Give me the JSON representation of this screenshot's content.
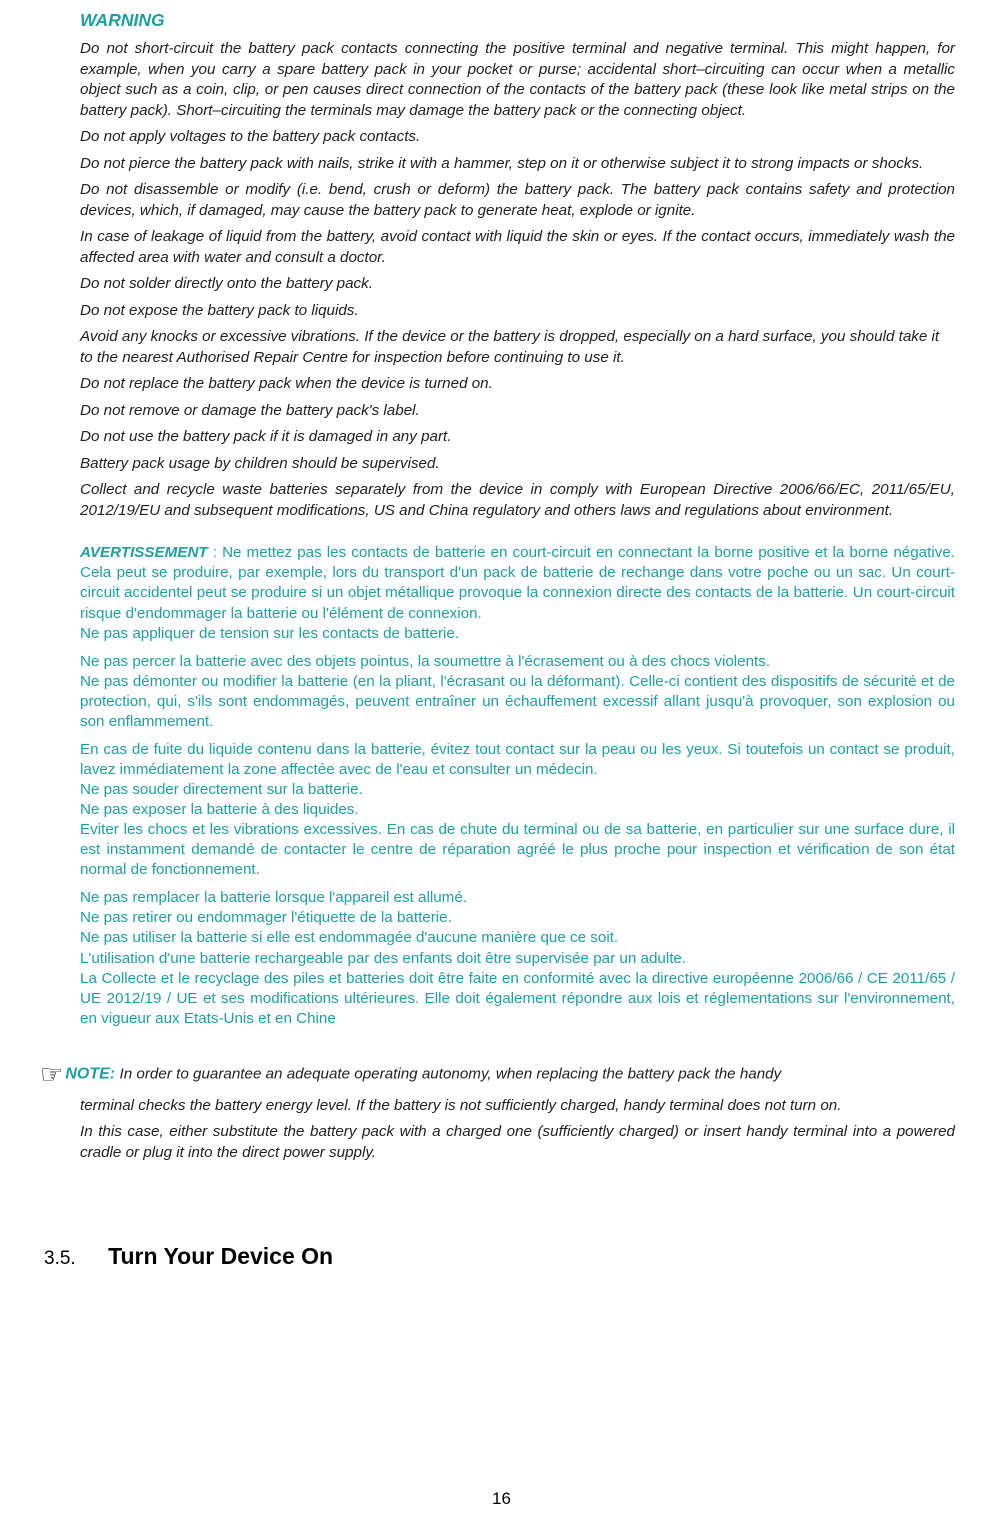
{
  "warning": {
    "title": "WARNING",
    "paras": [
      "Do not short-circuit the battery pack contacts connecting the positive terminal and negative terminal. This might happen, for example, when you carry a spare battery pack in your pocket or purse; accidental short–circuiting can occur when a metallic object such as a coin, clip, or pen causes direct connection of the contacts of the battery pack (these look like metal strips on the battery pack). Short–circuiting the terminals may damage the battery pack or the connecting object.",
      "Do not apply voltages to the battery pack contacts.",
      "Do not pierce the battery pack with nails, strike it with a hammer, step on it or otherwise subject it to strong impacts or shocks.",
      "Do not disassemble or modify (i.e. bend, crush or deform) the battery pack. The battery pack contains safety and protection devices, which, if damaged, may cause the battery pack to generate heat, explode or ignite.",
      "In case of leakage of liquid from the battery, avoid contact with liquid the skin or eyes. If the contact occurs, immediately wash the affected area with water and consult a doctor.",
      "Do not solder directly onto the battery pack.",
      "Do not expose the battery pack to liquids.",
      "Avoid any knocks or excessive vibrations. If the device or the battery is dropped, especially on a hard surface, you should take it to the nearest Authorised Repair Centre for inspection before continuing to use it.",
      "Do not replace the battery pack when the device is turned on.",
      "Do not remove or damage the battery pack's label.",
      "Do not use the battery pack if it is damaged in any part.",
      "Battery pack usage by children should be supervised.",
      "Collect and recycle waste batteries separately from the device in comply with European Directive 2006/66/EC, 2011/65/EU, 2012/19/EU and subsequent modifications, US and China regulatory and others laws and regulations about environment."
    ]
  },
  "avertissement": {
    "title": "AVERTISSEMENT",
    "blocks": [
      [
        ": Ne mettez pas les contacts de batterie en court-circuit en connectant la borne positive et la borne négative. Cela peut se produire, par exemple, lors du transport d'un pack de batterie de rechange dans votre poche ou un sac. Un court-circuit accidentel peut se produire si un objet métallique provoque la connexion directe des contacts de la batterie. Un court-circuit risque d'endommager la batterie ou l'élément de connexion.",
        "Ne pas appliquer de tension sur les contacts de batterie."
      ],
      [
        "Ne pas percer la batterie avec des objets pointus, la soumettre à l'écrasement ou à des chocs violents.",
        "Ne pas démonter ou modifier la batterie (en la pliant, l'écrasant ou la déformant). Celle-ci contient des dispositifs de sécurité et de protection, qui, s'ils sont endommagés, peuvent entraîner un échauffement excessif allant jusqu'à provoquer, son explosion ou son enflammement."
      ],
      [
        "En cas de fuite du liquide contenu dans la batterie, évitez tout contact sur la peau ou les yeux. Si toutefois un contact se produit, lavez immédiatement la zone affectée avec de l'eau et consulter un médecin.",
        "Ne pas souder directement sur la batterie.",
        "Ne pas exposer la batterie à des liquides.",
        "Eviter les chocs et les vibrations excessives. En cas de chute du terminal ou de sa batterie, en particulier sur une surface dure, il est instamment demandé de contacter le centre de réparation agréé le plus proche pour inspection et vérification de son état normal de fonctionnement."
      ],
      [
        "Ne pas remplacer la batterie lorsque l'appareil est allumé.",
        "Ne pas retirer ou endommager l'étiquette de la batterie.",
        "Ne pas utiliser la batterie si elle est endommagée d'aucune manière que ce soit.",
        "L'utilisation d'une batterie rechargeable par des enfants doit être supervisée par un adulte.",
        "La Collecte et le recyclage des piles et batteries doit être faite en conformité avec la directive européenne 2006/66 / CE 2011/65 / UE 2012/19 / UE et ses modifications ultérieures. Elle doit également répondre aux lois et réglementations sur l'environnement, en vigueur aux Etats-Unis et en Chine"
      ]
    ]
  },
  "note": {
    "label": "NOTE:",
    "line1": "In order to guarantee an adequate operating autonomy, when replacing the battery pack the handy",
    "line2": "terminal checks the battery energy level. If the battery is not sufficiently charged, handy terminal does not turn on.",
    "line3": "In this case, either substitute the battery pack with a charged one (sufficiently charged) or insert handy terminal into a powered cradle or plug it into the direct power supply."
  },
  "section": {
    "number": "3.5.",
    "title": "Turn Your Device On"
  },
  "page_number": "16",
  "justify_flags": {
    "warning": [
      true,
      false,
      true,
      true,
      true,
      false,
      false,
      false,
      false,
      false,
      false,
      false,
      true
    ],
    "fr_block_justify": [
      true,
      true,
      true,
      true
    ],
    "fr_line_justify": [
      [
        true,
        false
      ],
      [
        false,
        true
      ],
      [
        true,
        false,
        false,
        true
      ],
      [
        false,
        false,
        false,
        false,
        true
      ]
    ]
  },
  "colors": {
    "teal": "#1f9ea1",
    "text": "#1f1f1f",
    "background": "#ffffff"
  }
}
